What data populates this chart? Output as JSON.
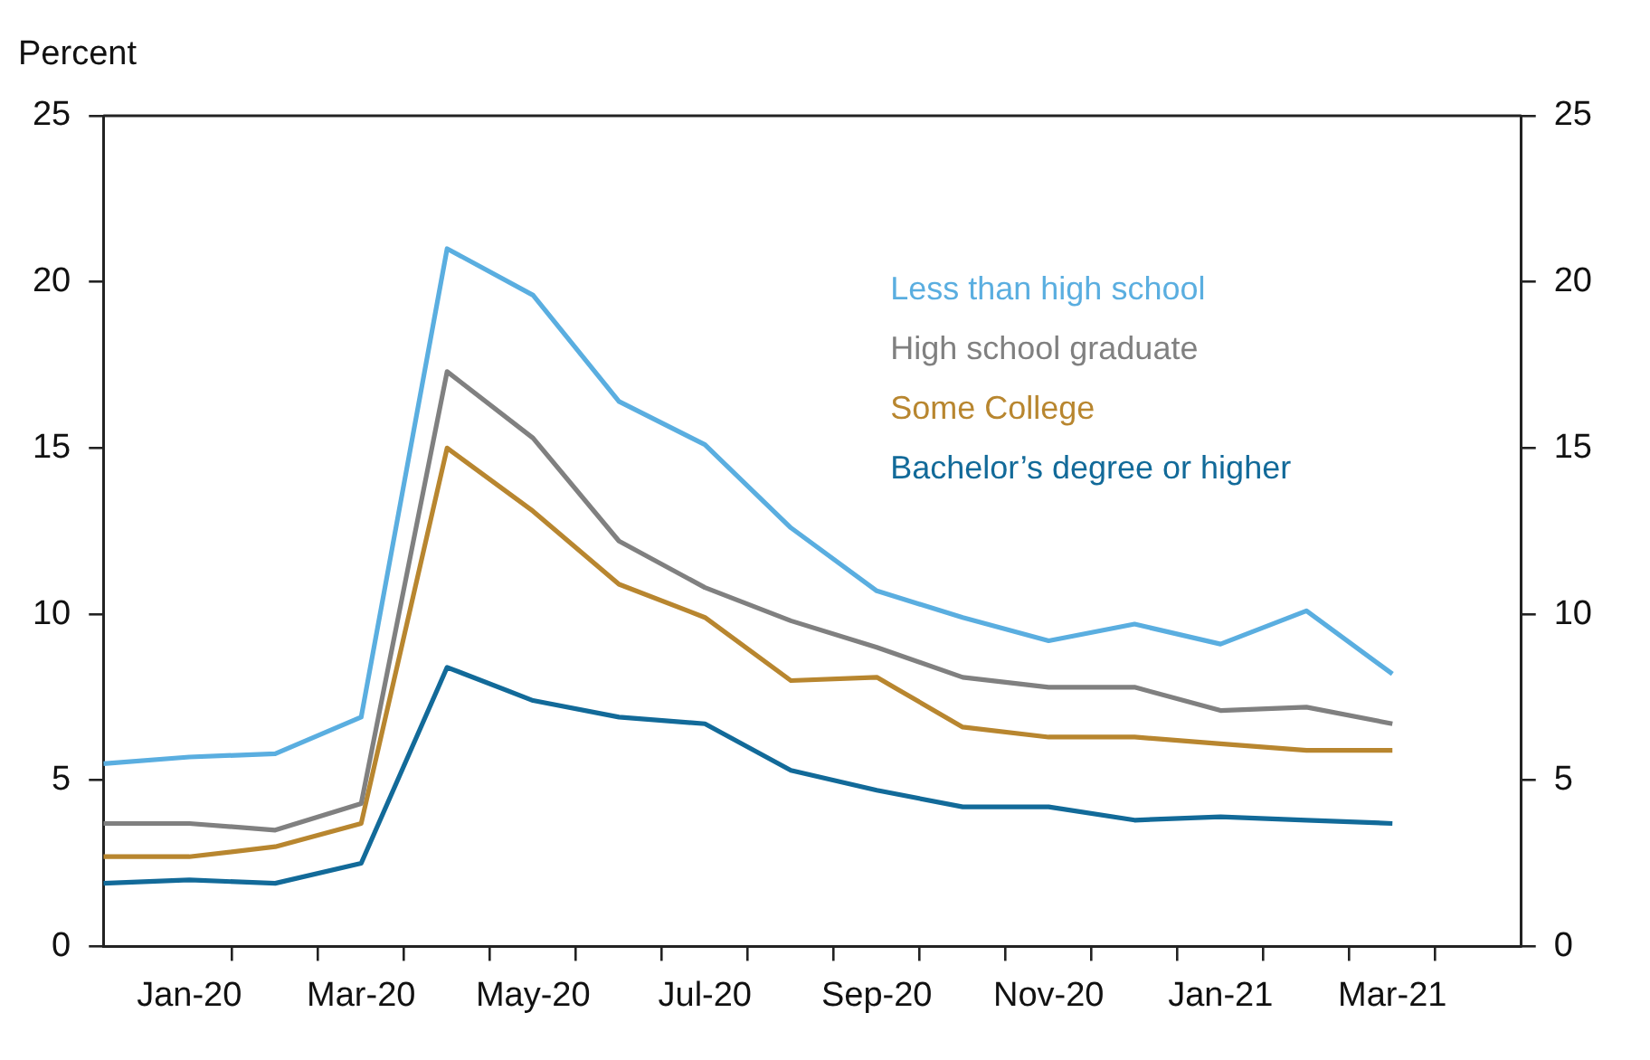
{
  "chart_data": {
    "type": "line",
    "ylabel": "Percent",
    "categories": [
      null,
      "Jan-20",
      null,
      "Mar-20",
      null,
      "May-20",
      null,
      "Jul-20",
      null,
      "Sep-20",
      null,
      "Nov-20",
      null,
      "Jan-21",
      null,
      "Mar-21"
    ],
    "ylim": [
      0,
      25
    ],
    "yticks": [
      0,
      5,
      10,
      15,
      20,
      25
    ],
    "y2lim": [
      0,
      25
    ],
    "y2ticks": [
      0,
      5,
      10,
      15,
      20,
      25
    ],
    "grid": false,
    "legend": "top right",
    "marker": "none",
    "line_style": "solid",
    "series": [
      {
        "name": "Less than high school",
        "color": "#5aaee0",
        "values": [
          5.5,
          5.7,
          5.8,
          6.9,
          21.0,
          19.6,
          16.4,
          15.1,
          12.6,
          10.7,
          9.9,
          9.2,
          9.7,
          9.1,
          10.1,
          8.2
        ]
      },
      {
        "name": "High school graduate",
        "color": "#808080",
        "values": [
          3.7,
          3.7,
          3.5,
          4.3,
          17.3,
          15.3,
          12.2,
          10.8,
          9.8,
          9.0,
          8.1,
          7.8,
          7.8,
          7.1,
          7.2,
          6.7
        ]
      },
      {
        "name": "Some College",
        "color": "#b8862f",
        "values": [
          2.7,
          2.7,
          3.0,
          3.7,
          15.0,
          13.1,
          10.9,
          9.9,
          8.0,
          8.1,
          6.6,
          6.3,
          6.3,
          6.1,
          5.9,
          5.9
        ]
      },
      {
        "name": "Bachelor’s degree or higher",
        "color": "#126a99",
        "values": [
          1.9,
          2.0,
          1.9,
          2.5,
          8.4,
          7.4,
          6.9,
          6.7,
          5.3,
          4.7,
          4.2,
          4.2,
          3.8,
          3.9,
          3.8,
          3.7
        ]
      }
    ]
  }
}
